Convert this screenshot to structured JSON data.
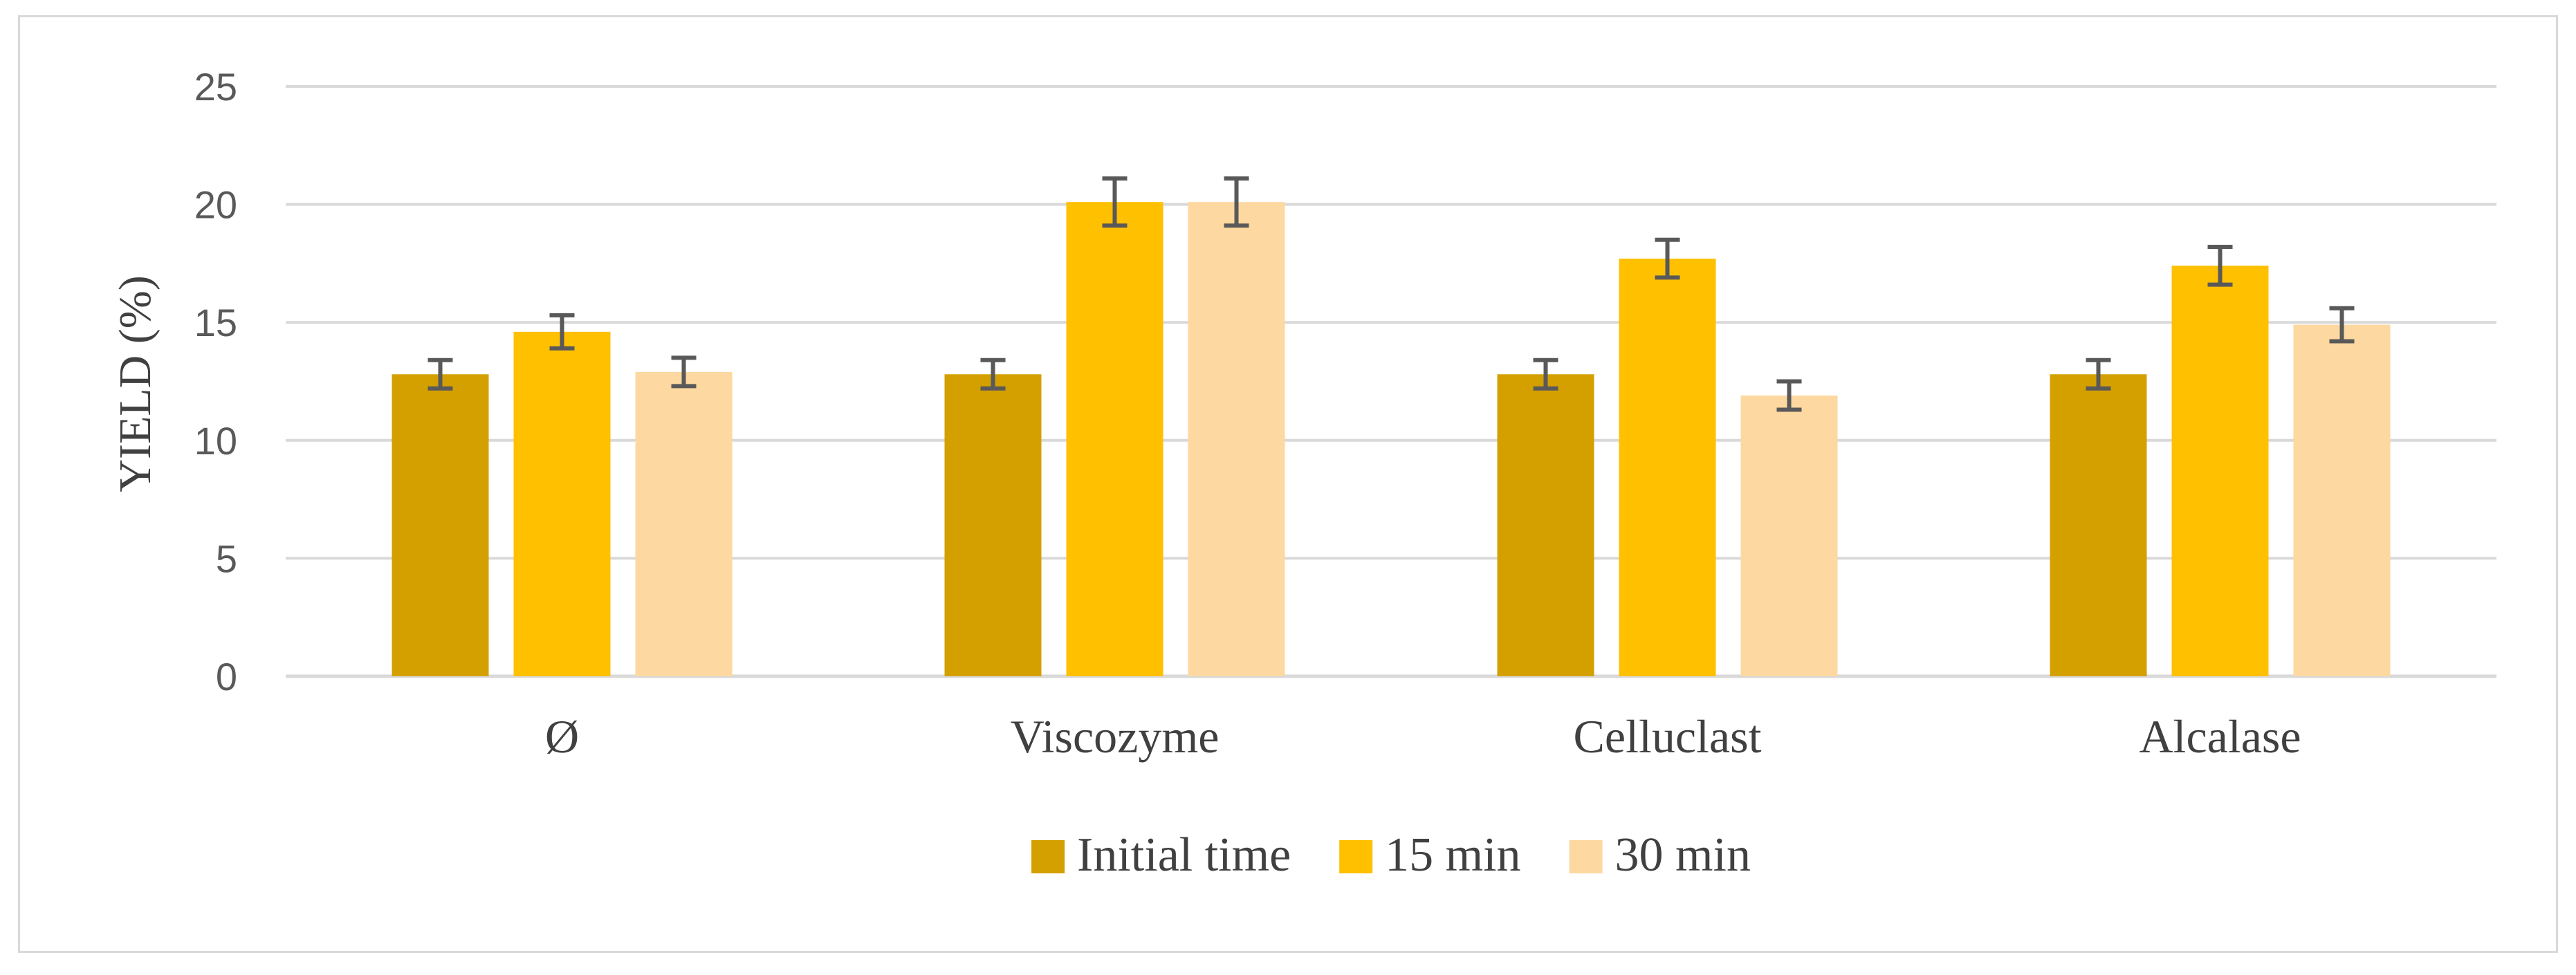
{
  "chart_data": {
    "type": "bar",
    "title": "",
    "xlabel": "",
    "ylabel": "YIELD (%)",
    "ylim": [
      0,
      25
    ],
    "yticks": [
      0,
      5,
      10,
      15,
      20,
      25
    ],
    "grid": true,
    "legend_position": "bottom",
    "categories": [
      "Ø",
      "Viscozyme",
      "Celluclast",
      "Alcalase"
    ],
    "series": [
      {
        "name": "Initial time",
        "color": "#d4a000",
        "values": [
          12.8,
          12.8,
          12.8,
          12.8
        ],
        "errors": [
          0.6,
          0.6,
          0.6,
          0.6
        ]
      },
      {
        "name": "15 min",
        "color": "#ffc000",
        "values": [
          14.6,
          20.1,
          17.7,
          17.4
        ],
        "errors": [
          0.7,
          1.0,
          0.8,
          0.8
        ]
      },
      {
        "name": "30 min",
        "color": "#fdd8a0",
        "values": [
          12.9,
          20.1,
          11.9,
          14.9
        ],
        "errors": [
          0.6,
          1.0,
          0.6,
          0.7
        ]
      }
    ],
    "error_bar_color": "#595959"
  }
}
